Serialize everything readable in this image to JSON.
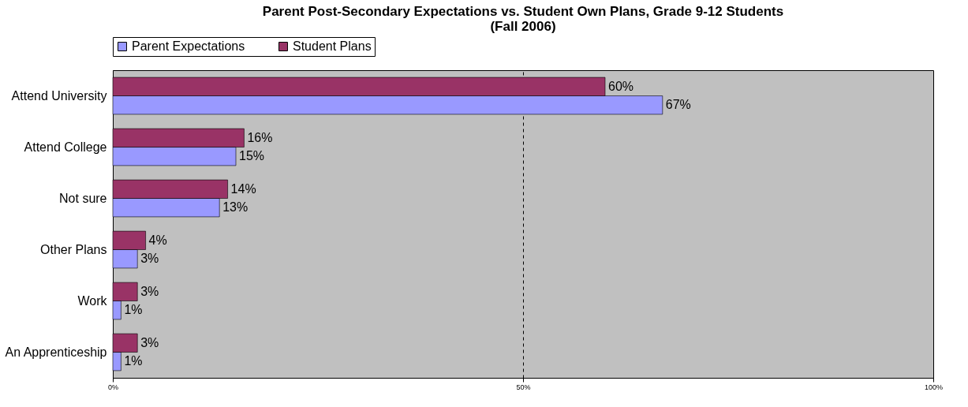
{
  "chart_data": {
    "type": "bar",
    "orientation": "horizontal",
    "title": "Parent Post-Secondary Expectations vs. Student Own Plans, Grade 9-12 Students\n(Fall 2006)",
    "categories": [
      "Attend University",
      "Attend College",
      "Not sure",
      "Other Plans",
      "Work",
      "An Apprenticeship"
    ],
    "series": [
      {
        "name": "Parent Expectations",
        "color": "#9999ff",
        "values": [
          67,
          15,
          13,
          3,
          1,
          1
        ],
        "value_labels": [
          "67%",
          "15%",
          "13%",
          "3%",
          "1%",
          "1%"
        ]
      },
      {
        "name": "Student Plans",
        "color": "#993366",
        "values": [
          60,
          16,
          14,
          4,
          3,
          3
        ],
        "value_labels": [
          "60%",
          "16%",
          "14%",
          "4%",
          "3%",
          "3%"
        ]
      }
    ],
    "xlim": [
      0,
      100
    ],
    "xticks": [
      {
        "value": 0,
        "label": "0%"
      },
      {
        "value": 50,
        "label": "50%"
      },
      {
        "value": 100,
        "label": "100%"
      }
    ],
    "grid": "x",
    "legend": "top"
  }
}
